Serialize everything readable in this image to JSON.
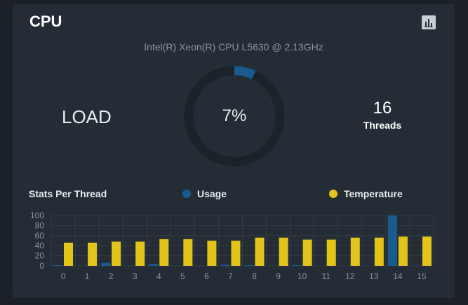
{
  "card": {
    "title": "CPU",
    "chart_button_icon": "bar-chart-icon",
    "cpu_model": "Intel(R) Xeon(R) CPU L5630 @ 2.13GHz",
    "load_label": "LOAD",
    "load_value": 7,
    "load_text": "7%",
    "threads_count": "16",
    "threads_label": "Threads"
  },
  "stats": {
    "title": "Stats Per Thread",
    "legend": [
      {
        "label": "Usage",
        "color": "#1a5a8f"
      },
      {
        "label": "Temperature",
        "color": "#e3c41a"
      }
    ]
  },
  "colors": {
    "gauge_track": "#1b2228",
    "gauge_fill": "#1a5a8f",
    "usage": "#1a5a8f",
    "temperature": "#e3c41a"
  },
  "chart_data": {
    "type": "bar",
    "categories": [
      "0",
      "1",
      "2",
      "3",
      "4",
      "5",
      "6",
      "7",
      "8",
      "9",
      "10",
      "11",
      "12",
      "13",
      "14",
      "15"
    ],
    "series": [
      {
        "name": "Usage",
        "values": [
          1,
          0,
          6,
          0,
          4,
          0,
          0,
          2,
          1,
          0,
          1,
          0,
          0,
          0,
          100,
          0
        ]
      },
      {
        "name": "Temperature",
        "values": [
          46,
          46,
          48,
          48,
          53,
          53,
          50,
          50,
          56,
          56,
          52,
          52,
          56,
          56,
          58,
          58
        ]
      }
    ],
    "yticks": [
      "0",
      "20",
      "40",
      "60",
      "80",
      "100"
    ],
    "ylim": [
      0,
      100
    ],
    "grid": true
  }
}
